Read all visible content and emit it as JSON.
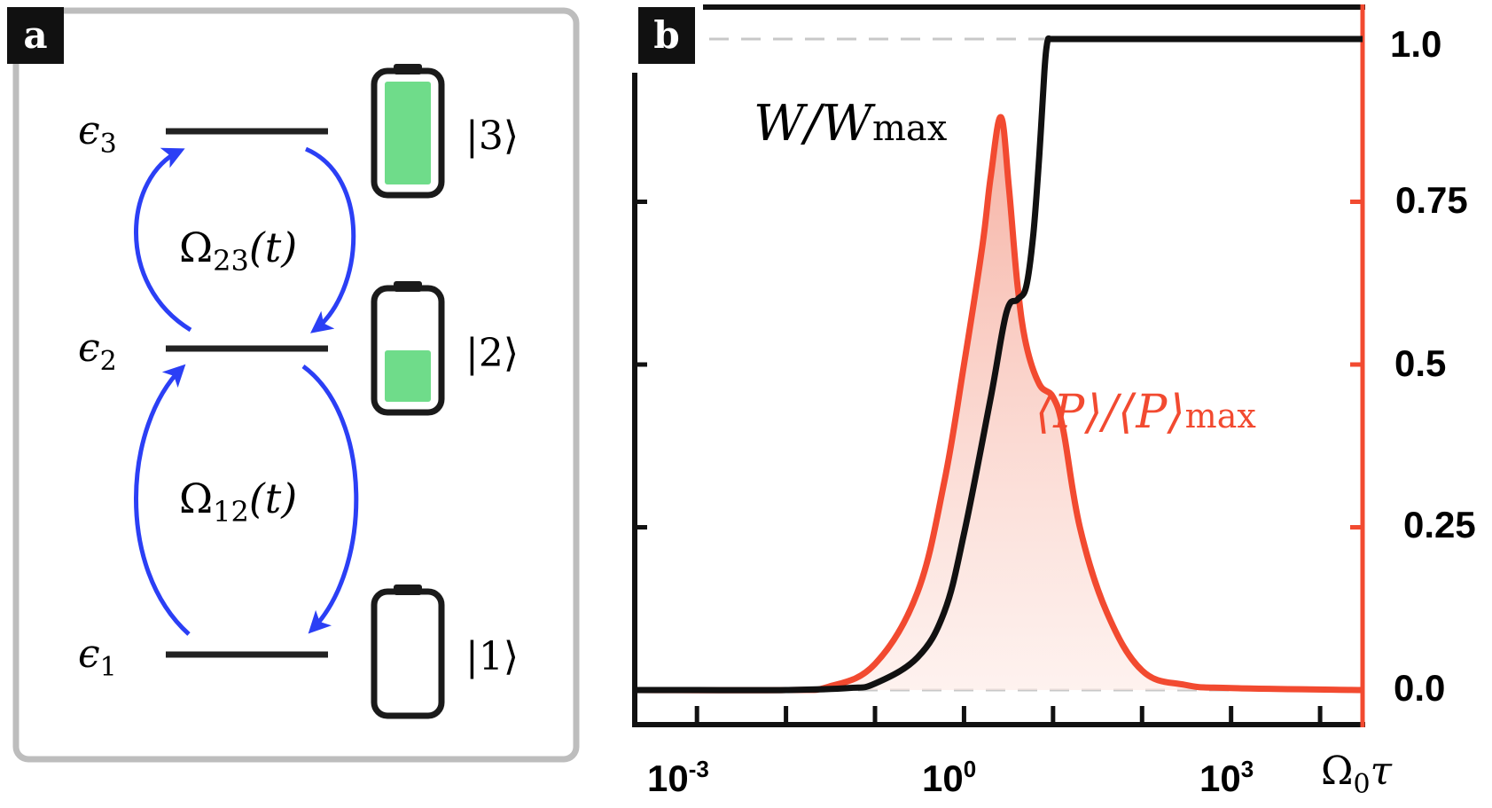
{
  "colors": {
    "level": "#222222",
    "arrow": "#2b3ff5",
    "battery_fill": "#6fdc8a",
    "battery_outline": "#1a1a1a",
    "panel_border": "#bdbdbd",
    "power": "#f24a30",
    "power_fill": "#f7c3b8",
    "guide": "#c8c8c8",
    "label_bg": "#111111",
    "label_fg": "#ffffff"
  },
  "panel_a": {
    "label": "a",
    "levels": [
      {
        "name": "e3",
        "symbol": "ϵ",
        "sub": "3",
        "state": "|3⟩",
        "charge": 1.0
      },
      {
        "name": "e2",
        "symbol": "ϵ",
        "sub": "2",
        "state": "|2⟩",
        "charge": 0.5
      },
      {
        "name": "e1",
        "symbol": "ϵ",
        "sub": "1",
        "state": "|1⟩",
        "charge": 0.0
      }
    ],
    "couplings": [
      {
        "symbol": "Ω",
        "sub": "23",
        "arg": "(t)"
      },
      {
        "symbol": "Ω",
        "sub": "12",
        "arg": "(t)"
      }
    ]
  },
  "panel_b": {
    "label": "b",
    "x_ticks": [
      "10",
      "10",
      "10"
    ],
    "x_tick_exps": [
      "-3",
      "0",
      "3"
    ],
    "x_axis_label": {
      "main": "Ω",
      "sub": "0",
      "tail": "τ"
    },
    "y_ticks": [
      "1.0",
      "0.75",
      "0.5",
      "0.25",
      "0.0"
    ],
    "work_label": {
      "main": "W/W",
      "sub": "max"
    },
    "power_label": {
      "main": "⟨P⟩/⟨P⟩",
      "sub": "max"
    }
  },
  "chart_data": {
    "type": "line",
    "xscale": "log",
    "xlim": [
      0.0002,
      30000
    ],
    "ylim": [
      0.0,
      1.0
    ],
    "series": [
      {
        "name": "W/W_max",
        "x": [
          0.0002,
          0.001,
          0.01,
          0.05,
          0.1,
          0.3,
          0.6,
          1.0,
          2.0,
          3.0,
          4.0,
          5.0,
          6.0,
          7.0,
          8.0,
          8.5,
          9.0,
          10,
          30,
          1000,
          30000
        ],
        "y": [
          0.0,
          0.0,
          0.0,
          0.003,
          0.01,
          0.05,
          0.12,
          0.24,
          0.45,
          0.58,
          0.6,
          0.62,
          0.7,
          0.82,
          0.95,
          0.99,
          1.0,
          1.0,
          1.0,
          1.0,
          1.0
        ]
      },
      {
        "name": "⟨P⟩/⟨P⟩_max",
        "x": [
          0.0002,
          0.01,
          0.03,
          0.1,
          0.3,
          0.6,
          1.0,
          1.6,
          2.0,
          2.6,
          3.2,
          4.0,
          5.0,
          7.0,
          10.0,
          13.0,
          20.0,
          40.0,
          100.0,
          300.0,
          1000,
          30000
        ],
        "y": [
          0.0,
          0.0,
          0.005,
          0.04,
          0.15,
          0.32,
          0.5,
          0.68,
          0.79,
          0.88,
          0.77,
          0.62,
          0.53,
          0.47,
          0.45,
          0.4,
          0.25,
          0.12,
          0.03,
          0.008,
          0.003,
          0.0
        ]
      }
    ],
    "guides": [
      0.0,
      1.0
    ]
  }
}
